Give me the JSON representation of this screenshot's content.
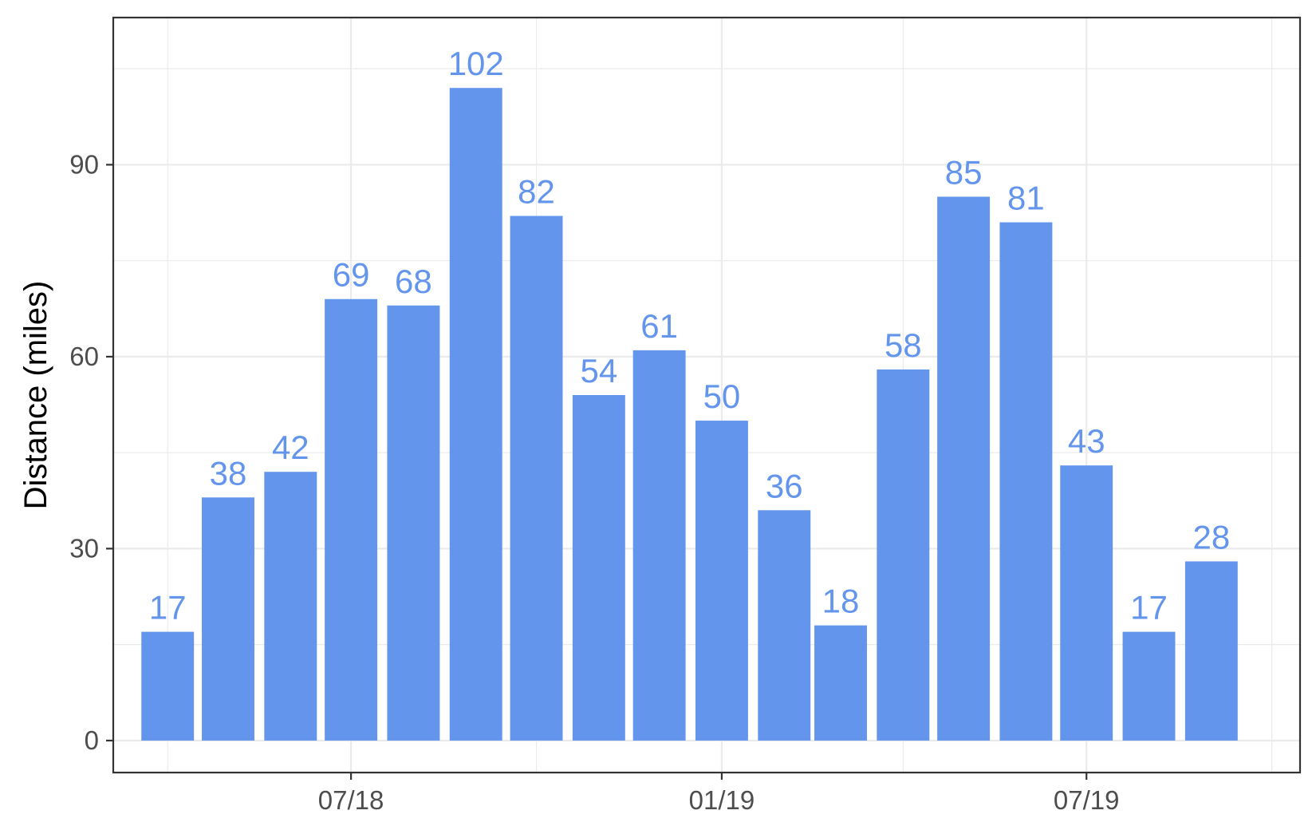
{
  "chart_data": {
    "type": "bar",
    "title": "",
    "xlabel": "",
    "ylabel": "Distance (miles)",
    "x_tick_labels": [
      "07/18",
      "01/19",
      "07/19"
    ],
    "y_ticks": [
      0,
      30,
      60,
      90
    ],
    "ylim": [
      -5,
      113
    ],
    "grid": true,
    "bar_color": "#6495ed",
    "label_color": "#6495ed",
    "series": [
      {
        "x": [
          "2018-04-01",
          "2018-05-01",
          "2018-06-01",
          "2018-07-01",
          "2018-08-01",
          "2018-09-01",
          "2018-10-01",
          "2018-11-01",
          "2018-12-01",
          "2019-01-01",
          "2019-02-01",
          "2019-03-01",
          "2019-04-01",
          "2019-05-01",
          "2019-06-01",
          "2019-07-01",
          "2019-08-01",
          "2019-09-01"
        ],
        "values": [
          17,
          38,
          42,
          69,
          68,
          102,
          82,
          54,
          61,
          50,
          36,
          18,
          58,
          85,
          81,
          43,
          17,
          28
        ],
        "labels": [
          "17",
          "38",
          "42",
          "69",
          "68",
          "102",
          "82",
          "54",
          "61",
          "50",
          "36",
          "18",
          "58",
          "85",
          "81",
          "43",
          "17",
          "28"
        ]
      }
    ]
  }
}
